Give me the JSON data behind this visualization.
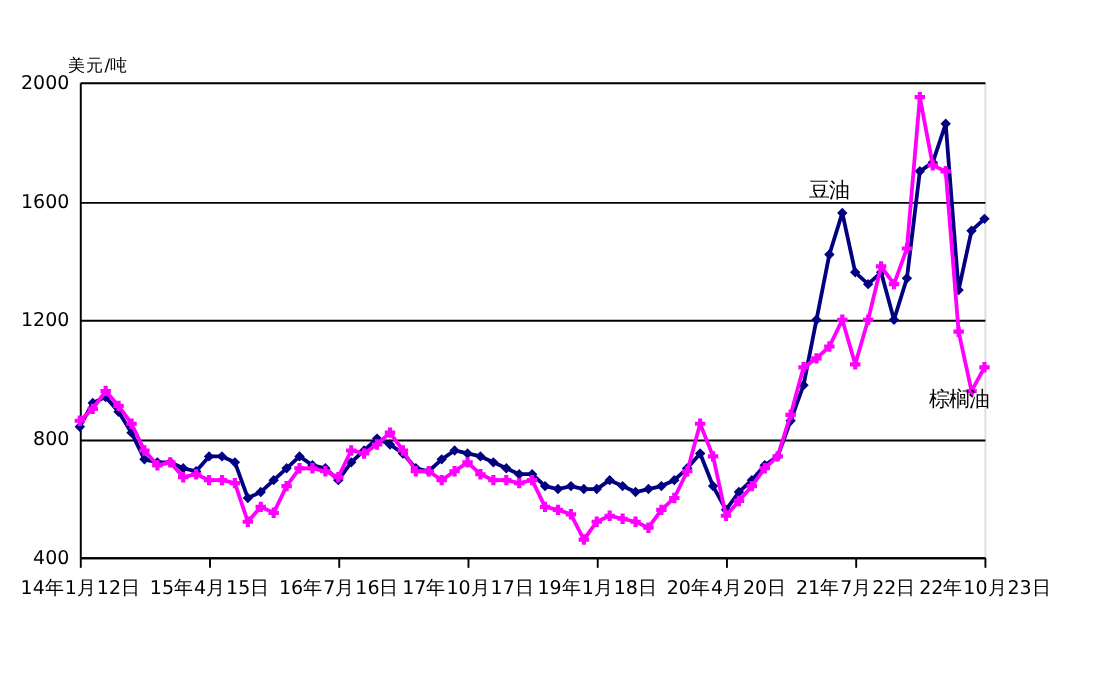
{
  "chart_data": {
    "type": "line",
    "ylabel": "美元/吨",
    "categories": [
      "14年1月12日",
      null,
      null,
      null,
      null,
      null,
      null,
      null,
      null,
      null,
      "15年4月15日",
      null,
      null,
      null,
      null,
      null,
      null,
      null,
      null,
      null,
      "16年7月16日",
      null,
      null,
      null,
      null,
      null,
      null,
      null,
      null,
      null,
      "17年10月17日",
      null,
      null,
      null,
      null,
      null,
      null,
      null,
      null,
      null,
      "19年1月18日",
      null,
      null,
      null,
      null,
      null,
      null,
      null,
      null,
      null,
      "20年4月20日",
      null,
      null,
      null,
      null,
      null,
      null,
      null,
      null,
      null,
      "21年7月22日",
      null,
      null,
      null,
      null,
      null,
      null,
      null,
      null,
      null,
      "22年10月23日"
    ],
    "series": [
      {
        "name": "豆油",
        "color": "#000080",
        "marker": "diamond",
        "values": [
          840,
          920,
          940,
          890,
          820,
          730,
          720,
          720,
          700,
          690,
          740,
          740,
          720,
          600,
          620,
          660,
          700,
          740,
          710,
          700,
          660,
          720,
          760,
          800,
          780,
          750,
          700,
          690,
          730,
          760,
          750,
          740,
          720,
          700,
          680,
          680,
          640,
          630,
          640,
          630,
          630,
          660,
          640,
          620,
          630,
          640,
          660,
          700,
          750,
          640,
          560,
          620,
          660,
          710,
          740,
          860,
          980,
          1200,
          1420,
          1560,
          1360,
          1320,
          1360,
          1200,
          1340,
          1700,
          1730,
          1860,
          1300,
          1500,
          1540
        ]
      },
      {
        "name": "棕榈油",
        "color": "#ff00ff",
        "marker": "cross",
        "values": [
          860,
          900,
          960,
          910,
          850,
          760,
          710,
          720,
          670,
          680,
          660,
          660,
          650,
          520,
          570,
          550,
          640,
          700,
          700,
          690,
          670,
          760,
          750,
          780,
          820,
          760,
          690,
          690,
          660,
          690,
          720,
          680,
          660,
          660,
          650,
          660,
          570,
          560,
          545,
          460,
          520,
          540,
          530,
          520,
          500,
          560,
          600,
          690,
          850,
          740,
          540,
          590,
          640,
          700,
          740,
          880,
          1040,
          1070,
          1110,
          1200,
          1050,
          1200,
          1380,
          1320,
          1440,
          1950,
          1720,
          1700,
          1160,
          960,
          1040
        ]
      }
    ],
    "ylim": [
      400,
      2000
    ],
    "yticks": [
      400,
      800,
      1200,
      1600,
      2000
    ],
    "grid": "y",
    "legend": false,
    "line_style": "solid"
  }
}
